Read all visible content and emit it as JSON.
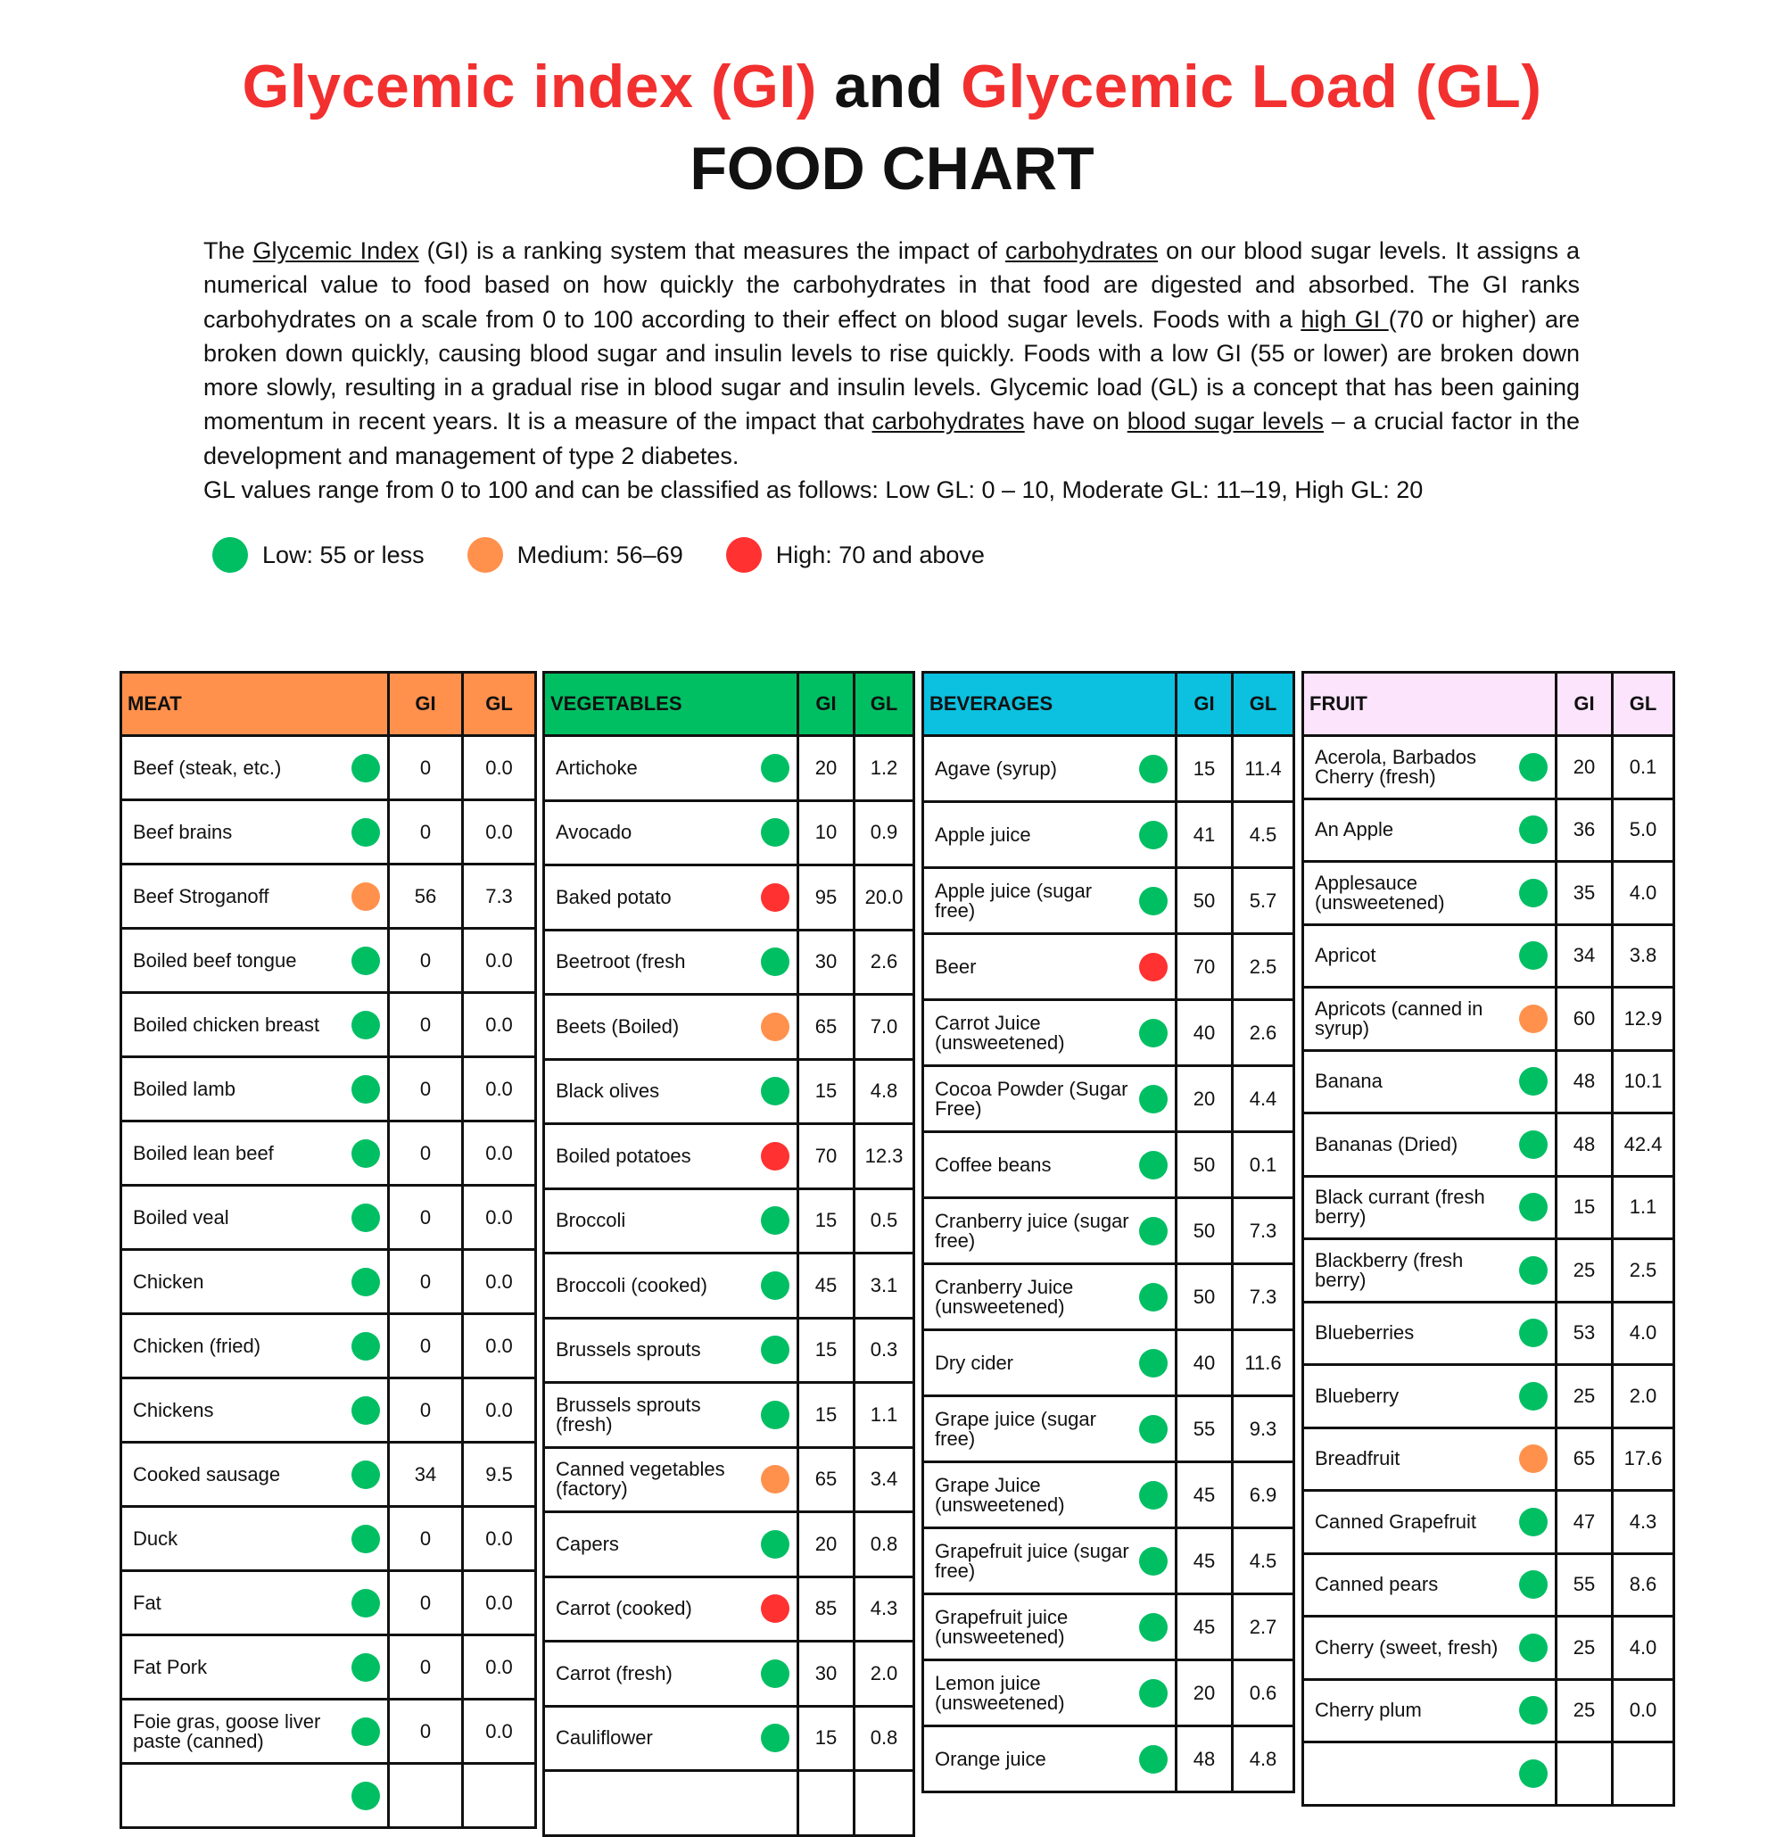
{
  "title": {
    "part1": "Glycemic index (GI)",
    "part2": "and",
    "part3": "Glycemic Load (GL)",
    "line2": "FOOD CHART"
  },
  "colors": {
    "title_red": "#f2302f",
    "low": "#00bf63",
    "medium": "#ff914d",
    "high": "#ff3131",
    "meat_header": "#ff914d",
    "vegetables_header": "#00bf63",
    "beverages_header": "#0cc0df",
    "fruit_header": "#fce4fc"
  },
  "intro": {
    "segments": [
      {
        "text": "The ",
        "link": false
      },
      {
        "text": "Glycemic Index",
        "link": true
      },
      {
        "text": " (GI) is a ranking system that measures the impact of ",
        "link": false
      },
      {
        "text": "carbohydrates",
        "link": true
      },
      {
        "text": " on our blood sugar levels. It assigns a numerical value to food based on how quickly the carbohydrates in that food are digested and absorbed. The GI ranks carbohydrates on a scale from 0 to 100 according to their effect on blood sugar levels. Foods with a ",
        "link": false
      },
      {
        "text": "high GI ",
        "link": true
      },
      {
        "text": "(70 or higher) are broken down quickly, causing blood sugar and insulin levels to rise quickly. Foods with a low GI (55 or lower) are broken down more slowly, resulting in a gradual rise in blood sugar and insulin levels. Glycemic load (GL) is a concept that has been gaining momentum in recent years. It is a measure of the impact that ",
        "link": false
      },
      {
        "text": "carbohydrates",
        "link": true
      },
      {
        "text": " have on ",
        "link": false
      },
      {
        "text": "blood sugar levels",
        "link": true
      },
      {
        "text": " – a crucial factor in the development and management of type 2 diabetes.",
        "link": false
      }
    ],
    "gl_line": "GL values range from 0 to 100 and can be classified as follows: Low GL: 0 – 10, Moderate GL: 11–19, High GL: 20"
  },
  "legend": [
    {
      "level": "low",
      "label": "Low: 55 or less"
    },
    {
      "level": "medium",
      "label": "Medium: 56–69"
    },
    {
      "level": "high",
      "label": "High: 70 and above"
    }
  ],
  "tables": [
    {
      "key": "meat",
      "title": "MEAT",
      "gi": "GI",
      "gl": "GL",
      "rows": [
        {
          "name": "Beef (steak, etc.)",
          "level": "low",
          "gi": "0",
          "gl": "0.0"
        },
        {
          "name": "Beef brains",
          "level": "low",
          "gi": "0",
          "gl": "0.0"
        },
        {
          "name": "Beef Stroganoff",
          "level": "medium",
          "gi": "56",
          "gl": "7.3"
        },
        {
          "name": "Boiled beef tongue",
          "level": "low",
          "gi": "0",
          "gl": "0.0"
        },
        {
          "name": "Boiled chicken breast",
          "level": "low",
          "gi": "0",
          "gl": "0.0"
        },
        {
          "name": "Boiled lamb",
          "level": "low",
          "gi": "0",
          "gl": "0.0"
        },
        {
          "name": "Boiled lean beef",
          "level": "low",
          "gi": "0",
          "gl": "0.0"
        },
        {
          "name": "Boiled veal",
          "level": "low",
          "gi": "0",
          "gl": "0.0"
        },
        {
          "name": "Chicken",
          "level": "low",
          "gi": "0",
          "gl": "0.0"
        },
        {
          "name": "Chicken (fried)",
          "level": "low",
          "gi": "0",
          "gl": "0.0"
        },
        {
          "name": "Chickens",
          "level": "low",
          "gi": "0",
          "gl": "0.0"
        },
        {
          "name": "Cooked sausage",
          "level": "low",
          "gi": "34",
          "gl": "9.5"
        },
        {
          "name": "Duck",
          "level": "low",
          "gi": "0",
          "gl": "0.0"
        },
        {
          "name": "Fat",
          "level": "low",
          "gi": "0",
          "gl": "0.0"
        },
        {
          "name": "Fat Pork",
          "level": "low",
          "gi": "0",
          "gl": "0.0"
        },
        {
          "name": "Foie gras, goose liver paste (canned)",
          "level": "low",
          "gi": "0",
          "gl": "0.0"
        },
        {
          "name": "",
          "level": "low",
          "gi": "",
          "gl": ""
        }
      ]
    },
    {
      "key": "vegetables",
      "title": "VEGETABLES",
      "gi": "GI",
      "gl": "GL",
      "rows": [
        {
          "name": "Artichoke",
          "level": "low",
          "gi": "20",
          "gl": "1.2"
        },
        {
          "name": "Avocado",
          "level": "low",
          "gi": "10",
          "gl": "0.9"
        },
        {
          "name": "Baked potato",
          "level": "high",
          "gi": "95",
          "gl": "20.0"
        },
        {
          "name": "Beetroot (fresh",
          "level": "low",
          "gi": "30",
          "gl": "2.6"
        },
        {
          "name": "Beets (Boiled)",
          "level": "medium",
          "gi": "65",
          "gl": "7.0"
        },
        {
          "name": "Black olives",
          "level": "low",
          "gi": "15",
          "gl": "4.8"
        },
        {
          "name": "Boiled potatoes",
          "level": "high",
          "gi": "70",
          "gl": "12.3"
        },
        {
          "name": "Broccoli",
          "level": "low",
          "gi": "15",
          "gl": "0.5"
        },
        {
          "name": "Broccoli (cooked)",
          "level": "low",
          "gi": "45",
          "gl": "3.1"
        },
        {
          "name": "Brussels sprouts",
          "level": "low",
          "gi": "15",
          "gl": "0.3"
        },
        {
          "name": "Brussels sprouts (fresh)",
          "level": "low",
          "gi": "15",
          "gl": "1.1"
        },
        {
          "name": "Canned vegetables (factory)",
          "level": "medium",
          "gi": "65",
          "gl": "3.4"
        },
        {
          "name": "Capers",
          "level": "low",
          "gi": "20",
          "gl": "0.8"
        },
        {
          "name": "Carrot (cooked)",
          "level": "high",
          "gi": "85",
          "gl": "4.3"
        },
        {
          "name": "Carrot (fresh)",
          "level": "low",
          "gi": "30",
          "gl": "2.0"
        },
        {
          "name": "Cauliflower",
          "level": "low",
          "gi": "15",
          "gl": "0.8"
        },
        {
          "name": "",
          "level": "",
          "gi": "",
          "gl": ""
        }
      ]
    },
    {
      "key": "beverages",
      "title": "BEVERAGES",
      "gi": "GI",
      "gl": "GL",
      "rows": [
        {
          "name": "Agave (syrup)",
          "level": "low",
          "gi": "15",
          "gl": "11.4"
        },
        {
          "name": "Apple juice",
          "level": "low",
          "gi": "41",
          "gl": "4.5"
        },
        {
          "name": "Apple juice (sugar free)",
          "level": "low",
          "gi": "50",
          "gl": "5.7"
        },
        {
          "name": "Beer",
          "level": "high",
          "gi": "70",
          "gl": "2.5"
        },
        {
          "name": "Carrot Juice (unsweetened)",
          "level": "low",
          "gi": "40",
          "gl": "2.6"
        },
        {
          "name": "Cocoa Powder (Sugar Free)",
          "level": "low",
          "gi": "20",
          "gl": "4.4"
        },
        {
          "name": "Coffee beans",
          "level": "low",
          "gi": "50",
          "gl": "0.1"
        },
        {
          "name": "Cranberry juice (sugar free)",
          "level": "low",
          "gi": "50",
          "gl": "7.3"
        },
        {
          "name": "Cranberry Juice (unsweetened)",
          "level": "low",
          "gi": "50",
          "gl": "7.3"
        },
        {
          "name": "Dry cider",
          "level": "low",
          "gi": "40",
          "gl": "11.6"
        },
        {
          "name": "Grape juice (sugar free)",
          "level": "low",
          "gi": "55",
          "gl": "9.3"
        },
        {
          "name": "Grape Juice (unsweetened)",
          "level": "low",
          "gi": "45",
          "gl": "6.9"
        },
        {
          "name": "Grapefruit juice (sugar free)",
          "level": "low",
          "gi": "45",
          "gl": "4.5"
        },
        {
          "name": "Grapefruit juice (unsweetened)",
          "level": "low",
          "gi": "45",
          "gl": "2.7"
        },
        {
          "name": "Lemon juice (unsweetened)",
          "level": "low",
          "gi": "20",
          "gl": "0.6"
        },
        {
          "name": "Orange juice",
          "level": "low",
          "gi": "48",
          "gl": "4.8"
        }
      ]
    },
    {
      "key": "fruit",
      "title": "FRUIT",
      "gi": "GI",
      "gl": "GL",
      "rows": [
        {
          "name": "Acerola, Barbados Cherry (fresh)",
          "level": "low",
          "gi": "20",
          "gl": "0.1"
        },
        {
          "name": "An Apple",
          "level": "low",
          "gi": "36",
          "gl": "5.0"
        },
        {
          "name": "Applesauce (unsweetened)",
          "level": "low",
          "gi": "35",
          "gl": "4.0"
        },
        {
          "name": "Apricot",
          "level": "low",
          "gi": "34",
          "gl": "3.8"
        },
        {
          "name": "Apricots (canned in syrup)",
          "level": "medium",
          "gi": "60",
          "gl": "12.9"
        },
        {
          "name": "Banana",
          "level": "low",
          "gi": "48",
          "gl": "10.1"
        },
        {
          "name": "Bananas (Dried)",
          "level": "low",
          "gi": "48",
          "gl": "42.4"
        },
        {
          "name": "Black currant (fresh berry)",
          "level": "low",
          "gi": "15",
          "gl": "1.1"
        },
        {
          "name": "Blackberry (fresh berry)",
          "level": "low",
          "gi": "25",
          "gl": "2.5"
        },
        {
          "name": "Blueberries",
          "level": "low",
          "gi": "53",
          "gl": "4.0"
        },
        {
          "name": "Blueberry",
          "level": "low",
          "gi": "25",
          "gl": "2.0"
        },
        {
          "name": "Breadfruit",
          "level": "medium",
          "gi": "65",
          "gl": "17.6"
        },
        {
          "name": "Canned Grapefruit",
          "level": "low",
          "gi": "47",
          "gl": "4.3"
        },
        {
          "name": "Canned pears",
          "level": "low",
          "gi": "55",
          "gl": "8.6"
        },
        {
          "name": "Cherry (sweet, fresh)",
          "level": "low",
          "gi": "25",
          "gl": "4.0"
        },
        {
          "name": "Cherry plum",
          "level": "low",
          "gi": "25",
          "gl": "0.0"
        },
        {
          "name": "",
          "level": "low",
          "gi": "",
          "gl": ""
        }
      ]
    }
  ]
}
